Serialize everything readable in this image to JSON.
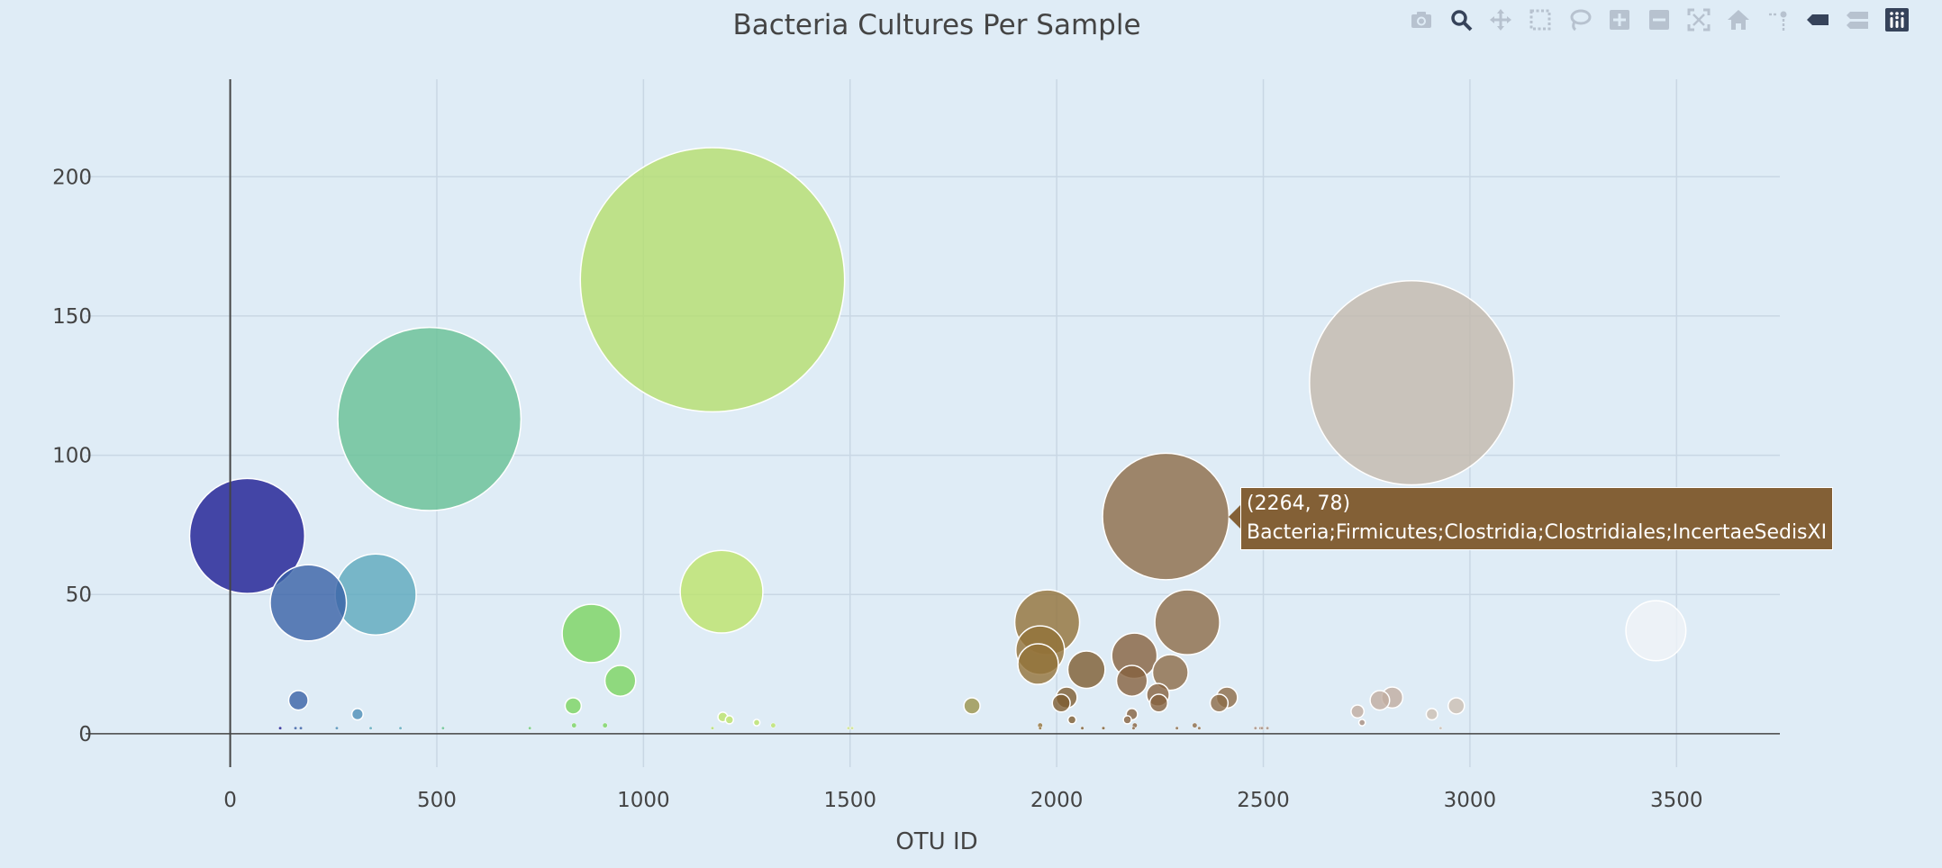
{
  "chart_data": {
    "type": "scatter",
    "title": "Bacteria Cultures Per Sample",
    "xlabel": "OTU ID",
    "ylabel": "",
    "xlim": [
      -350,
      3750
    ],
    "ylim": [
      -12,
      235
    ],
    "x_ticks": [
      0,
      500,
      1000,
      1500,
      2000,
      2500,
      3000,
      3500
    ],
    "y_ticks": [
      0,
      50,
      100,
      150,
      200
    ],
    "grid": true,
    "legend": "none",
    "points": [
      {
        "x": 41,
        "y": 71,
        "size": 71,
        "color": "#1c1c92"
      },
      {
        "x": 189,
        "y": 47,
        "size": 47,
        "color": "#3861a6"
      },
      {
        "x": 352,
        "y": 50,
        "size": 50,
        "color": "#5ca9bd"
      },
      {
        "x": 482,
        "y": 113,
        "size": 113,
        "color": "#66c095"
      },
      {
        "x": 1167,
        "y": 163,
        "size": 163,
        "color": "#b5de6e"
      },
      {
        "x": 2859,
        "y": 126,
        "size": 126,
        "color": "#c3b9ac"
      },
      {
        "x": 2264,
        "y": 78,
        "size": 78,
        "color": "#8c6b47"
      },
      {
        "x": 1189,
        "y": 51,
        "size": 51,
        "color": "#bde46a"
      },
      {
        "x": 874,
        "y": 36,
        "size": 36,
        "color": "#7ad560"
      },
      {
        "x": 944,
        "y": 19,
        "size": 19,
        "color": "#7ad560"
      },
      {
        "x": 3450,
        "y": 37,
        "size": 37,
        "color": "#f0f4f8"
      },
      {
        "x": 1977,
        "y": 40,
        "size": 40,
        "color": "#927238"
      },
      {
        "x": 1960,
        "y": 30,
        "size": 30,
        "color": "#927238"
      },
      {
        "x": 1955,
        "y": 25,
        "size": 25,
        "color": "#927238"
      },
      {
        "x": 2316,
        "y": 40,
        "size": 40,
        "color": "#8c6b47"
      },
      {
        "x": 2188,
        "y": 28,
        "size": 28,
        "color": "#86623f"
      },
      {
        "x": 2072,
        "y": 23,
        "size": 23,
        "color": "#7d5c31"
      },
      {
        "x": 2275,
        "y": 22,
        "size": 22,
        "color": "#8c6b47"
      },
      {
        "x": 2182,
        "y": 19,
        "size": 19,
        "color": "#86623f"
      },
      {
        "x": 2024,
        "y": 13,
        "size": 13,
        "color": "#7d5c31"
      },
      {
        "x": 2011,
        "y": 11,
        "size": 11,
        "color": "#7d5c31"
      },
      {
        "x": 2412,
        "y": 13,
        "size": 13,
        "color": "#8c6b47"
      },
      {
        "x": 2393,
        "y": 11,
        "size": 11,
        "color": "#8c6b47"
      },
      {
        "x": 2245,
        "y": 14,
        "size": 14,
        "color": "#86623f"
      },
      {
        "x": 2247,
        "y": 11,
        "size": 11,
        "color": "#86623f"
      },
      {
        "x": 2182,
        "y": 7,
        "size": 7,
        "color": "#86623f"
      },
      {
        "x": 2171,
        "y": 5,
        "size": 5,
        "color": "#86623f"
      },
      {
        "x": 2037,
        "y": 5,
        "size": 5,
        "color": "#7d5c31"
      },
      {
        "x": 1795,
        "y": 10,
        "size": 10,
        "color": "#9a944b"
      },
      {
        "x": 2812,
        "y": 13,
        "size": 13,
        "color": "#c0ada0"
      },
      {
        "x": 2782,
        "y": 12,
        "size": 12,
        "color": "#c0ada0"
      },
      {
        "x": 2967,
        "y": 10,
        "size": 10,
        "color": "#ccbfb3"
      },
      {
        "x": 2908,
        "y": 7,
        "size": 7,
        "color": "#ccbfb3"
      },
      {
        "x": 2728,
        "y": 8,
        "size": 8,
        "color": "#c0ada0"
      },
      {
        "x": 2739,
        "y": 4,
        "size": 4,
        "color": "#a88f80"
      },
      {
        "x": 165,
        "y": 12,
        "size": 12,
        "color": "#3861a6"
      },
      {
        "x": 308,
        "y": 7,
        "size": 7,
        "color": "#4e8fb8"
      },
      {
        "x": 830,
        "y": 10,
        "size": 10,
        "color": "#7ad560"
      },
      {
        "x": 1192,
        "y": 6,
        "size": 6,
        "color": "#bde46a"
      },
      {
        "x": 1208,
        "y": 5,
        "size": 5,
        "color": "#bde46a"
      },
      {
        "x": 1274,
        "y": 4,
        "size": 4,
        "color": "#bde46a"
      },
      {
        "x": 1314,
        "y": 3,
        "size": 3,
        "color": "#bde46a"
      },
      {
        "x": 907,
        "y": 3,
        "size": 3,
        "color": "#7ad560"
      },
      {
        "x": 832,
        "y": 3,
        "size": 3,
        "color": "#7ad560"
      },
      {
        "x": 1960,
        "y": 3,
        "size": 3,
        "color": "#927238"
      },
      {
        "x": 2189,
        "y": 3,
        "size": 3,
        "color": "#86623f"
      },
      {
        "x": 2334,
        "y": 3,
        "size": 3,
        "color": "#8c6b47"
      },
      {
        "x": 2929,
        "y": 2,
        "size": 2,
        "color": "#ccbfb3"
      },
      {
        "x": 121,
        "y": 2,
        "size": 2,
        "color": "#1c1c92"
      },
      {
        "x": 158,
        "y": 2,
        "size": 2,
        "color": "#3861a6"
      },
      {
        "x": 171,
        "y": 2,
        "size": 2,
        "color": "#3861a6"
      },
      {
        "x": 258,
        "y": 2,
        "size": 2,
        "color": "#4e8fb8"
      },
      {
        "x": 340,
        "y": 2,
        "size": 2,
        "color": "#5ca9bd"
      },
      {
        "x": 412,
        "y": 2,
        "size": 2,
        "color": "#5ca9bd"
      },
      {
        "x": 515,
        "y": 2,
        "size": 2,
        "color": "#66c095"
      },
      {
        "x": 725,
        "y": 2,
        "size": 2,
        "color": "#6fcb7d"
      },
      {
        "x": 1167,
        "y": 2,
        "size": 2,
        "color": "#b5de6e"
      },
      {
        "x": 1496,
        "y": 2,
        "size": 2,
        "color": "#cfe58a"
      },
      {
        "x": 1505,
        "y": 2,
        "size": 2,
        "color": "#cfe58a"
      },
      {
        "x": 1960,
        "y": 2,
        "size": 2,
        "color": "#927238"
      },
      {
        "x": 2062,
        "y": 2,
        "size": 2,
        "color": "#7d5c31"
      },
      {
        "x": 2113,
        "y": 2,
        "size": 2,
        "color": "#7d5c31"
      },
      {
        "x": 2186,
        "y": 2,
        "size": 2,
        "color": "#86623f"
      },
      {
        "x": 2291,
        "y": 2,
        "size": 2,
        "color": "#8c6b47"
      },
      {
        "x": 2345,
        "y": 2,
        "size": 2,
        "color": "#8c6b47"
      },
      {
        "x": 2481,
        "y": 2,
        "size": 2,
        "color": "#a88f80"
      },
      {
        "x": 2493,
        "y": 2,
        "size": 2,
        "color": "#a88f80"
      },
      {
        "x": 2497,
        "y": 2,
        "size": 2,
        "color": "#a88f80"
      },
      {
        "x": 2510,
        "y": 2,
        "size": 2,
        "color": "#a88f80"
      }
    ],
    "hover": {
      "coords": "(2264, 78)",
      "label": "Bacteria;Firmicutes;Clostridia;Clostridiales;IncertaeSedisXI",
      "color": "#836036"
    }
  },
  "toolbar": {
    "icons": [
      "camera-icon",
      "zoom-icon",
      "pan-icon",
      "box-select-icon",
      "lasso-select-icon",
      "zoom-in-icon",
      "zoom-out-icon",
      "autoscale-icon",
      "reset-axes-icon",
      "spike-lines-icon",
      "hover-closest-icon",
      "hover-compare-icon",
      "plotly-logo-icon"
    ],
    "active_color": "#36435a",
    "inactive_color": "#b7c2cf"
  },
  "colors": {
    "background": "#dfecf6",
    "grid": "#c9d7e4",
    "zero_line": "#444444"
  }
}
